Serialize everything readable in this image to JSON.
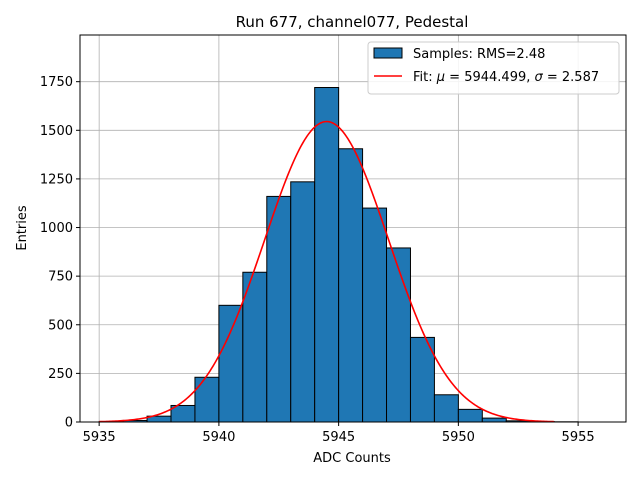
{
  "chart_data": {
    "type": "bar",
    "title": "Run 677, channel077, Pedestal",
    "xlabel": "ADC Counts",
    "ylabel": "Entries",
    "xlim": [
      5934.2,
      5957.0
    ],
    "ylim": [
      0,
      1990
    ],
    "grid": true,
    "legend_position": "top-right",
    "x_ticks": [
      5935,
      5940,
      5945,
      5950,
      5955
    ],
    "y_ticks": [
      0,
      250,
      500,
      750,
      1000,
      1250,
      1500,
      1750
    ],
    "bar_color": "#1f77b4",
    "fit_color": "#ff0000",
    "bins": [
      {
        "x0": 5935,
        "x1": 5936,
        "value": 2
      },
      {
        "x0": 5936,
        "x1": 5937,
        "value": 8
      },
      {
        "x0": 5937,
        "x1": 5938,
        "value": 30
      },
      {
        "x0": 5938,
        "x1": 5939,
        "value": 85
      },
      {
        "x0": 5939,
        "x1": 5940,
        "value": 230
      },
      {
        "x0": 5940,
        "x1": 5941,
        "value": 600
      },
      {
        "x0": 5941,
        "x1": 5942,
        "value": 770
      },
      {
        "x0": 5942,
        "x1": 5943,
        "value": 1160
      },
      {
        "x0": 5943,
        "x1": 5944,
        "value": 1235
      },
      {
        "x0": 5944,
        "x1": 5945,
        "value": 1720
      },
      {
        "x0": 5945,
        "x1": 5946,
        "value": 1405
      },
      {
        "x0": 5946,
        "x1": 5947,
        "value": 1100
      },
      {
        "x0": 5947,
        "x1": 5948,
        "value": 895
      },
      {
        "x0": 5948,
        "x1": 5949,
        "value": 435
      },
      {
        "x0": 5949,
        "x1": 5950,
        "value": 140
      },
      {
        "x0": 5950,
        "x1": 5951,
        "value": 65
      },
      {
        "x0": 5951,
        "x1": 5952,
        "value": 20
      },
      {
        "x0": 5952,
        "x1": 5953,
        "value": 6
      },
      {
        "x0": 5953,
        "x1": 5954,
        "value": 2
      },
      {
        "x0": 5954,
        "x1": 5955,
        "value": 1
      },
      {
        "x0": 5955,
        "x1": 5956,
        "value": 0
      }
    ],
    "fit": {
      "mu": 5944.499,
      "sigma": 2.587,
      "amplitude": 1545,
      "x_range": [
        5935,
        5954
      ]
    },
    "legend": {
      "samples_label": "Samples: RMS=2.48",
      "fit_label_prefix": "Fit: ",
      "fit_mu_symbol": "μ",
      "fit_mu_value": " = 5944.499, ",
      "fit_sigma_symbol": "σ",
      "fit_sigma_value": " = 2.587"
    }
  }
}
